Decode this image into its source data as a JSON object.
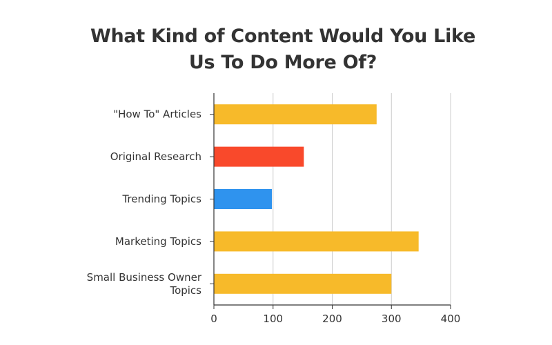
{
  "chart_data": {
    "type": "bar",
    "orientation": "horizontal",
    "title_lines": [
      "What Kind of Content Would You Like",
      "Us To Do More Of?"
    ],
    "categories": [
      [
        "\"How To\" Articles"
      ],
      [
        "Original Research"
      ],
      [
        "Trending Topics"
      ],
      [
        "Marketing Topics"
      ],
      [
        "Small Business Owner",
        "Topics"
      ]
    ],
    "values": [
      275,
      152,
      98,
      346,
      300
    ],
    "colors": [
      "#F7BA2A",
      "#F9492B",
      "#2F93EE",
      "#F7BA2A",
      "#F7BA2A"
    ],
    "xlim": [
      0,
      400
    ],
    "xticks": [
      "0",
      "100",
      "200",
      "300",
      "400"
    ],
    "xlabel": "",
    "ylabel": "",
    "grid": "vertical"
  }
}
